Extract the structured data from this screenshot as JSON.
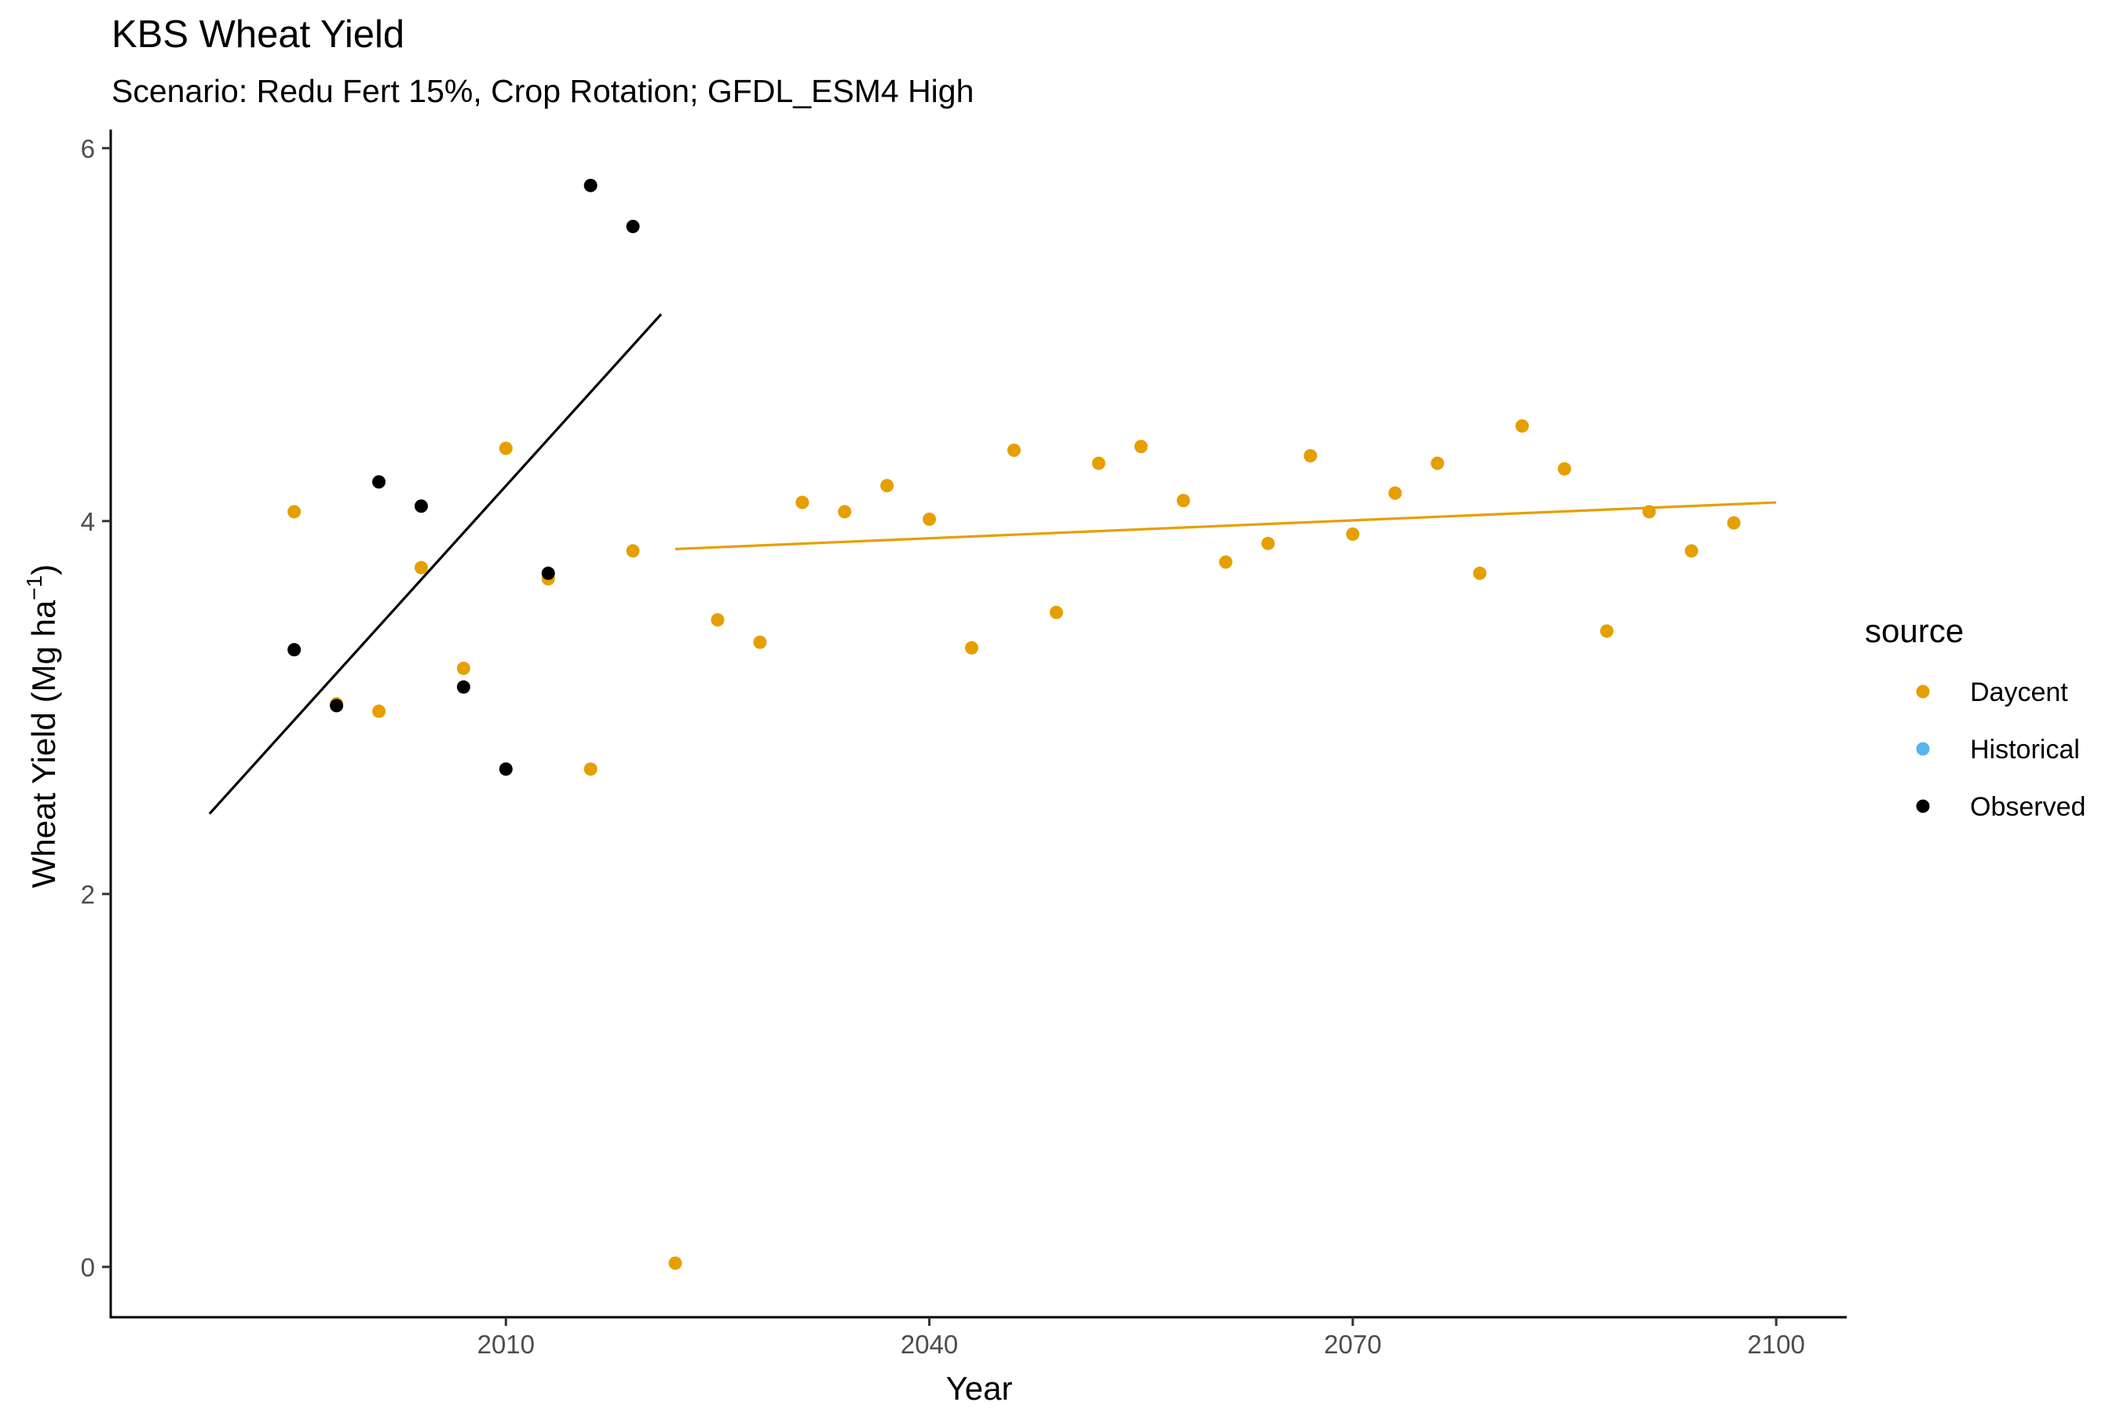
{
  "chart_data": {
    "type": "scatter",
    "title": "KBS Wheat Yield",
    "subtitle": "Scenario: Redu Fert 15%, Crop Rotation; GFDL_ESM4 High",
    "xlabel": "Year",
    "ylabel_main": "Wheat Yield (Mg ha",
    "ylabel_sup": "−1",
    "ylabel_close": ")",
    "xlim": [
      1982,
      2105
    ],
    "ylim": [
      -0.27,
      6.1
    ],
    "x_ticks": [
      2010,
      2040,
      2070,
      2100
    ],
    "y_ticks": [
      0,
      2,
      4,
      6
    ],
    "grid": false,
    "legend": {
      "title": "source",
      "position": "right",
      "entries": [
        {
          "label": "Daycent",
          "color": "#E69F00"
        },
        {
          "label": "Historical",
          "color": "#56B4E9"
        },
        {
          "label": "Observed",
          "color": "#000000"
        }
      ]
    },
    "series": [
      {
        "name": "Daycent",
        "color": "#E69F00",
        "points": [
          [
            1995,
            4.05
          ],
          [
            1998,
            3.02
          ],
          [
            2001,
            2.98
          ],
          [
            2004,
            3.75
          ],
          [
            2007,
            3.21
          ],
          [
            2010,
            4.39
          ],
          [
            2013,
            3.69
          ],
          [
            2016,
            2.67
          ],
          [
            2019,
            3.84
          ],
          [
            2022,
            0.02
          ],
          [
            2025,
            3.47
          ],
          [
            2028,
            3.35
          ],
          [
            2031,
            4.1
          ],
          [
            2034,
            4.05
          ],
          [
            2037,
            4.19
          ],
          [
            2040,
            4.01
          ],
          [
            2043,
            3.32
          ],
          [
            2046,
            4.38
          ],
          [
            2049,
            3.51
          ],
          [
            2052,
            4.31
          ],
          [
            2055,
            4.4
          ],
          [
            2058,
            4.11
          ],
          [
            2061,
            3.78
          ],
          [
            2064,
            3.88
          ],
          [
            2067,
            4.35
          ],
          [
            2070,
            3.93
          ],
          [
            2073,
            4.15
          ],
          [
            2076,
            4.31
          ],
          [
            2079,
            3.72
          ],
          [
            2082,
            4.51
          ],
          [
            2085,
            4.28
          ],
          [
            2088,
            3.41
          ],
          [
            2091,
            4.05
          ],
          [
            2094,
            3.84
          ],
          [
            2097,
            3.99
          ]
        ]
      },
      {
        "name": "Historical",
        "color": "#56B4E9",
        "points": []
      },
      {
        "name": "Observed",
        "color": "#000000",
        "points": [
          [
            1995,
            3.31
          ],
          [
            1998,
            3.01
          ],
          [
            2001,
            4.21
          ],
          [
            2004,
            4.08
          ],
          [
            2007,
            3.11
          ],
          [
            2010,
            2.67
          ],
          [
            2013,
            3.72
          ],
          [
            2016,
            5.8
          ],
          [
            2019,
            5.58
          ]
        ]
      }
    ],
    "trend_lines": [
      {
        "series": "Observed",
        "color": "#000000",
        "from": [
          1989,
          2.43
        ],
        "to": [
          2021,
          5.11
        ]
      },
      {
        "series": "Daycent",
        "color": "#E69F00",
        "from": [
          2022,
          3.85
        ],
        "to": [
          2100,
          4.1
        ]
      }
    ]
  }
}
